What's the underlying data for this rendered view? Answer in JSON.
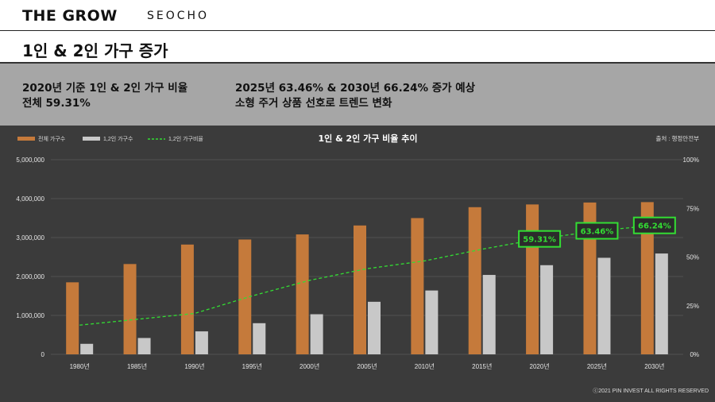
{
  "header": {
    "brand": "THE GROW",
    "brand_sub": "SEOCHO"
  },
  "page_title": "1인 & 2인 가구 증가",
  "summary": {
    "left_line1": "2020년 기준 1인 & 2인 가구 비율",
    "left_line2": "전체 59.31%",
    "right_line1": "2025년 63.46% & 2030년 66.24% 증가 예상",
    "right_line2": "소형 주거 상품 선호로 트렌드 변화"
  },
  "copyright": "ⓒ2021 PIN INVEST ALL RIGHTS RESERVED",
  "colors": {
    "total": "#c57a3b",
    "small": "#c8c8c8",
    "ratio": "#33dd33",
    "panel": "#3b3b3b"
  },
  "chart_data": {
    "type": "bar",
    "title": "1인 & 2인 가구 비율 추이",
    "source": "출처 : 행정안전부",
    "categories": [
      "1980년",
      "1985년",
      "1990년",
      "1995년",
      "2000년",
      "2005년",
      "2010년",
      "2015년",
      "2020년",
      "2025년",
      "2030년"
    ],
    "series": [
      {
        "name": "전체 가구수",
        "type": "bar",
        "axis": "left",
        "values": [
          1850000,
          2320000,
          2820000,
          2950000,
          3080000,
          3310000,
          3500000,
          3780000,
          3850000,
          3900000,
          3910000
        ]
      },
      {
        "name": "1,2인 가구수",
        "type": "bar",
        "axis": "left",
        "values": [
          270000,
          420000,
          590000,
          800000,
          1030000,
          1350000,
          1640000,
          2040000,
          2290000,
          2480000,
          2590000
        ]
      },
      {
        "name": "1,2인 가구비율",
        "type": "line",
        "axis": "right",
        "style": "dashed",
        "values": [
          15,
          18,
          21,
          30,
          38,
          44,
          48,
          54,
          59.31,
          63.46,
          66.24
        ]
      }
    ],
    "ylim": [
      0,
      5000000
    ],
    "yticks": [
      "0",
      "1,000,000",
      "2,000,000",
      "3,000,000",
      "4,000,000",
      "5,000,000"
    ],
    "y2lim": [
      0,
      100
    ],
    "y2ticks": [
      "0%",
      "25%",
      "50%",
      "75%",
      "100%"
    ],
    "annotations": [
      {
        "index": 8,
        "label": "59.31%"
      },
      {
        "index": 9,
        "label": "63.46%"
      },
      {
        "index": 10,
        "label": "66.24%"
      }
    ],
    "legend_position": "top-left",
    "grid": true
  }
}
